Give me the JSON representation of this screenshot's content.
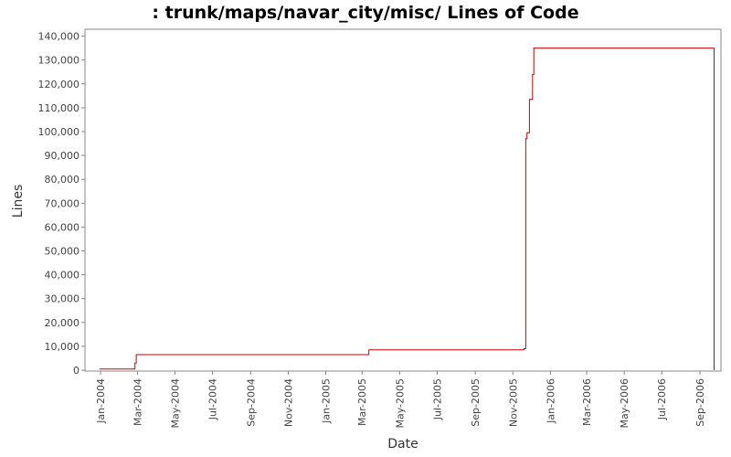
{
  "chart_data": {
    "type": "line",
    "title": ": trunk/maps/navar_city/misc/ Lines of Code",
    "xlabel": "Date",
    "ylabel": "Lines",
    "ylim": [
      0,
      140000
    ],
    "x_tick_labels": [
      "Jan-2004",
      "Mar-2004",
      "May-2004",
      "Jul-2004",
      "Sep-2004",
      "Nov-2004",
      "Jan-2005",
      "Mar-2005",
      "May-2005",
      "Jul-2005",
      "Sep-2005",
      "Nov-2005",
      "Jan-2006",
      "Mar-2006",
      "May-2006",
      "Jul-2006",
      "Sep-2006"
    ],
    "y_tick_labels": [
      "0",
      "10,000",
      "20,000",
      "30,000",
      "40,000",
      "50,000",
      "60,000",
      "70,000",
      "80,000",
      "90,000",
      "100,000",
      "110,000",
      "120,000",
      "130,000",
      "140,000"
    ],
    "grid": false,
    "legend": "none",
    "line_color": "#cc0000",
    "series": [
      {
        "step": true,
        "x": [
          "2003-12-30",
          "2004-02-26",
          "2004-02-28",
          "2005-03-12",
          "2005-11-19",
          "2005-11-22",
          "2005-11-24",
          "2005-11-28",
          "2005-12-03",
          "2005-12-05",
          "2006-09-24",
          "2006-09-24"
        ],
        "y": [
          500,
          3000,
          6500,
          8500,
          9000,
          97000,
          99500,
          113500,
          124000,
          135000,
          135000,
          0
        ]
      }
    ]
  }
}
